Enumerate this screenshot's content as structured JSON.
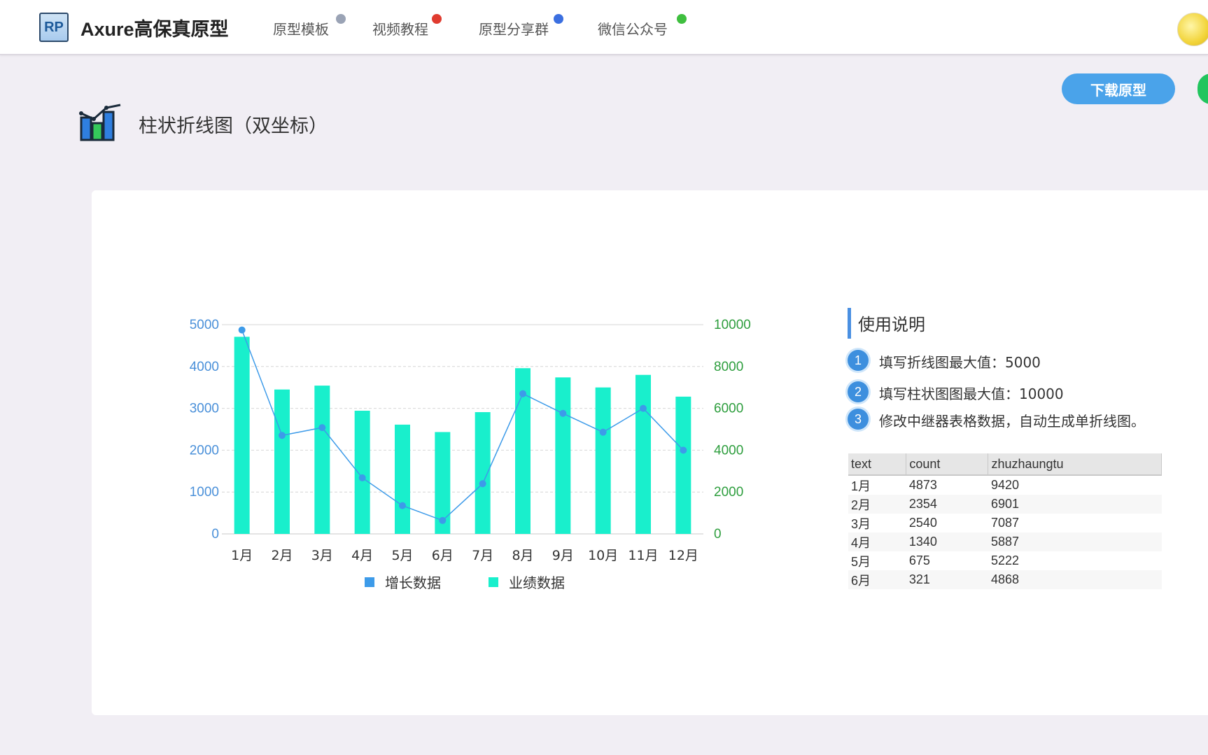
{
  "header": {
    "logo_text": "RP",
    "app_title": "Axure高保真原型",
    "nav": [
      {
        "label": "原型模板",
        "icon": "ghost-icon",
        "color": "#9aa3b5"
      },
      {
        "label": "视频教程",
        "icon": "fire-icon",
        "color": "#e03b2f"
      },
      {
        "label": "原型分享群",
        "icon": "paper-plane-icon",
        "color": "#3b6fe0"
      },
      {
        "label": "微信公众号",
        "icon": "wechat-icon",
        "color": "#3fbf3f"
      }
    ]
  },
  "actions": {
    "download_label": "下载原型"
  },
  "page": {
    "title": "柱状折线图（双坐标）"
  },
  "usage": {
    "title": "使用说明",
    "steps": [
      {
        "num": "1",
        "text": "填写折线图最大值：5000"
      },
      {
        "num": "2",
        "text": "填写柱状图图最大值：10000"
      },
      {
        "num": "3",
        "text": "修改中继器表格数据，自动生成单折线图。"
      }
    ]
  },
  "table": {
    "headers": [
      "text",
      "count",
      "zhuzhaungtu"
    ],
    "rows": [
      [
        "1月",
        "4873",
        "9420"
      ],
      [
        "2月",
        "2354",
        "6901"
      ],
      [
        "3月",
        "2540",
        "7087"
      ],
      [
        "4月",
        "1340",
        "5887"
      ],
      [
        "5月",
        "675",
        "5222"
      ],
      [
        "6月",
        "321",
        "4868"
      ]
    ]
  },
  "chart_data": {
    "type": "bar",
    "categories": [
      "1月",
      "2月",
      "3月",
      "4月",
      "5月",
      "6月",
      "7月",
      "8月",
      "9月",
      "10月",
      "11月",
      "12月"
    ],
    "series": [
      {
        "name": "增长数据",
        "type": "line",
        "axis": "left",
        "color": "#3d9be9",
        "values": [
          4873,
          2354,
          2540,
          1340,
          675,
          321,
          1200,
          3350,
          2880,
          2430,
          3000,
          2000
        ]
      },
      {
        "name": "业绩数据",
        "type": "bar",
        "axis": "right",
        "color": "#19efcc",
        "values": [
          9420,
          6901,
          7087,
          5887,
          5222,
          4868,
          5820,
          7920,
          7480,
          7000,
          7600,
          6560
        ]
      }
    ],
    "y_left": {
      "min": 0,
      "max": 5000,
      "ticks": [
        "0",
        "1000",
        "2000",
        "3000",
        "4000",
        "5000"
      ],
      "color": "#4a90d9"
    },
    "y_right": {
      "min": 0,
      "max": 10000,
      "ticks": [
        "0",
        "2000",
        "4000",
        "6000",
        "8000",
        "10000"
      ],
      "color": "#2e9e3e"
    },
    "grid": true,
    "legend_position": "bottom"
  }
}
